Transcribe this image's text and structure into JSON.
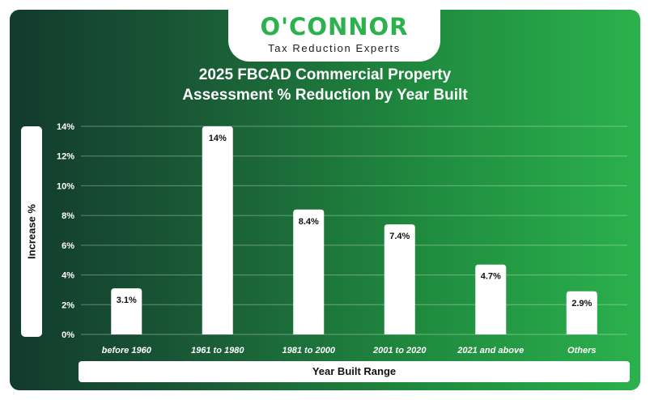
{
  "brand": {
    "name": "O'CONNOR",
    "tagline": "Tax Reduction Experts"
  },
  "chart_data": {
    "type": "bar",
    "title": "2025 FBCAD Commercial Property\nAssessment % Reduction by Year Built",
    "xlabel": "Year Built Range",
    "ylabel": "Increase %",
    "categories": [
      "before 1960",
      "1961 to 1980",
      "1981 to 2000",
      "2001 to 2020",
      "2021 and above",
      "Others"
    ],
    "values": [
      3.1,
      14,
      8.4,
      7.4,
      4.7,
      2.9
    ],
    "data_labels": [
      "3.1%",
      "14%",
      "8.4%",
      "7.4%",
      "4.7%",
      "2.9%"
    ],
    "yticks": [
      "0%",
      "2%",
      "4%",
      "6%",
      "8%",
      "10%",
      "12%",
      "14%"
    ],
    "ylim": [
      0,
      14
    ],
    "grid": true,
    "colors": {
      "bar": "#ffffff",
      "text": "#ffffff",
      "label_text": "#111111",
      "brand_green": "#2bb14d"
    }
  }
}
